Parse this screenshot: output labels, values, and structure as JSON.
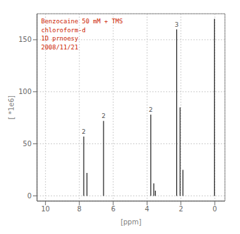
{
  "chart_data": {
    "type": "stem",
    "xlabel": "[ppm]",
    "ylabel": "[ *1e6]",
    "x": [
      7.74,
      7.55,
      6.57,
      3.78,
      3.6,
      3.51,
      2.25,
      2.05,
      1.88,
      0.02
    ],
    "values": [
      57,
      22,
      72,
      78,
      12,
      5,
      160,
      85,
      25,
      170
    ],
    "labels": [
      "2",
      null,
      "2",
      "2",
      null,
      null,
      "3",
      null,
      null,
      null
    ],
    "color": "#1a1a1a",
    "xlim": [
      10.5,
      -0.6
    ],
    "ylim": [
      -5,
      175
    ],
    "xticks": [
      10,
      8,
      6,
      4,
      2,
      0
    ],
    "yticks": [
      0,
      50,
      100,
      150
    ],
    "grid": true,
    "annotations": [
      {
        "text": "Benzocaine 50 mM + TMS\nchloroform-d\n1D prnoesy\n2008/11/21",
        "color": "#cc2200"
      }
    ]
  }
}
